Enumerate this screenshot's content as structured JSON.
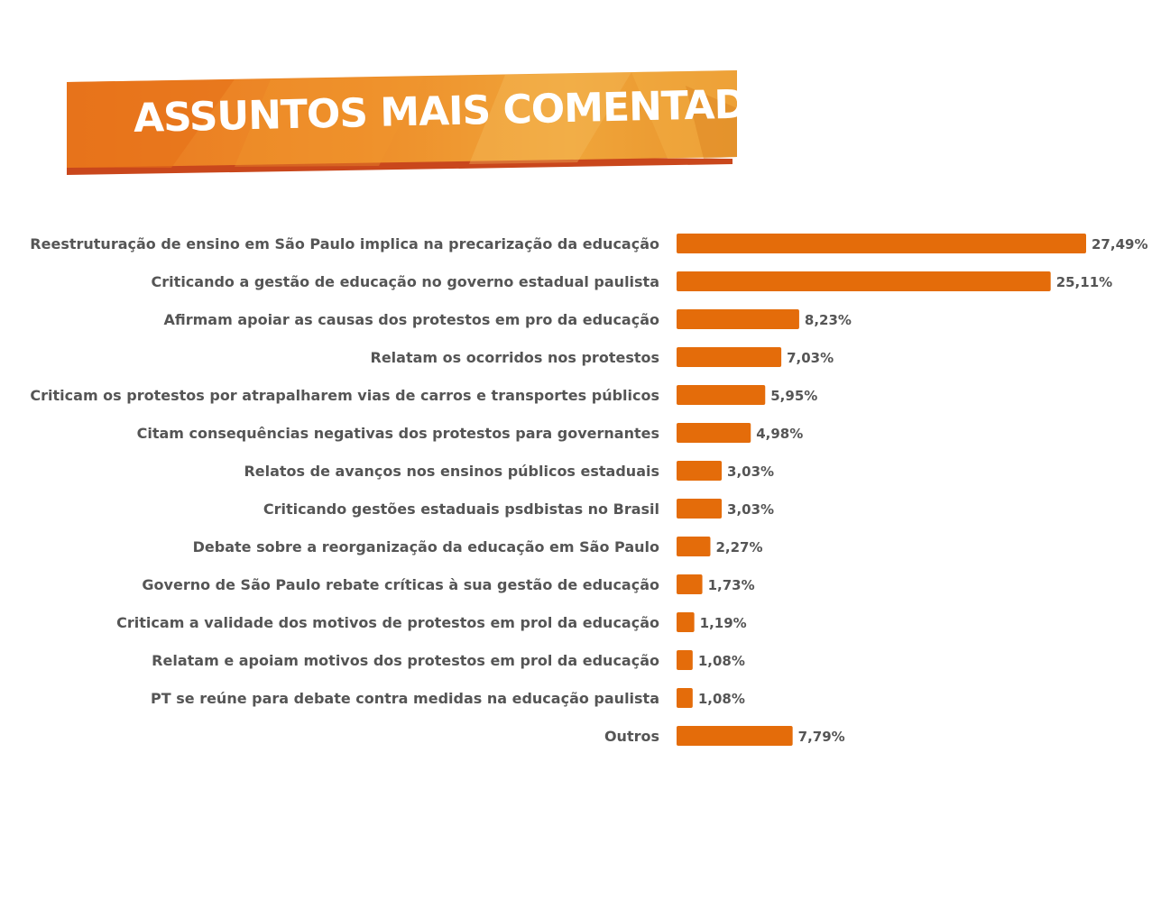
{
  "colors": {
    "bar": "#e46c0a",
    "label": "#555555",
    "banner_dark": "#e9781f",
    "banner_light": "#f2a93b",
    "banner_shadow": "#c9471c"
  },
  "chart_data": {
    "type": "bar",
    "orientation": "horizontal",
    "title": "ASSUNTOS MAIS COMENTADOS",
    "xlim": [
      0,
      27.49
    ],
    "categories": [
      "Reestruturação de ensino em São Paulo implica na precarização da educação",
      "Criticando a gestão de educação no governo estadual paulista",
      "Afirmam apoiar as causas dos protestos em pro da educação",
      "Relatam os ocorridos nos protestos",
      "Criticam os protestos por atrapalharem vias de carros e transportes públicos",
      "Citam consequências negativas dos protestos para governantes",
      "Relatos de avanços nos ensinos públicos estaduais",
      "Criticando gestões estaduais psdbistas no Brasil",
      "Debate sobre a reorganização da educação em São Paulo",
      "Governo de São Paulo rebate críticas à sua gestão de educação",
      "Criticam a validade dos motivos de protestos em prol da educação",
      "Relatam e apoiam motivos dos protestos em prol da educação",
      "PT se reúne para debate contra medidas na educação paulista",
      "Outros"
    ],
    "values": [
      27.49,
      25.11,
      8.23,
      7.03,
      5.95,
      4.98,
      3.03,
      3.03,
      2.27,
      1.73,
      1.19,
      1.08,
      1.08,
      7.79
    ],
    "value_labels": [
      "27,49%",
      "25,11%",
      "8,23%",
      "7,03%",
      "5,95%",
      "4,98%",
      "3,03%",
      "3,03%",
      "2,27%",
      "1,73%",
      "1,19%",
      "1,08%",
      "1,08%",
      "7,79%"
    ]
  }
}
